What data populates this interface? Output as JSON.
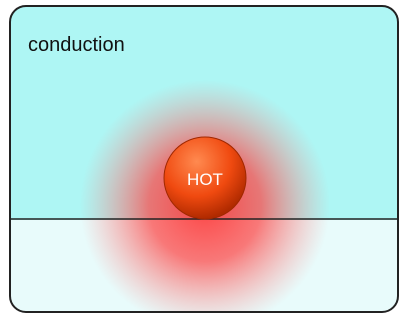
{
  "panel": {
    "title": "conduction",
    "ball_label": "HOT"
  }
}
